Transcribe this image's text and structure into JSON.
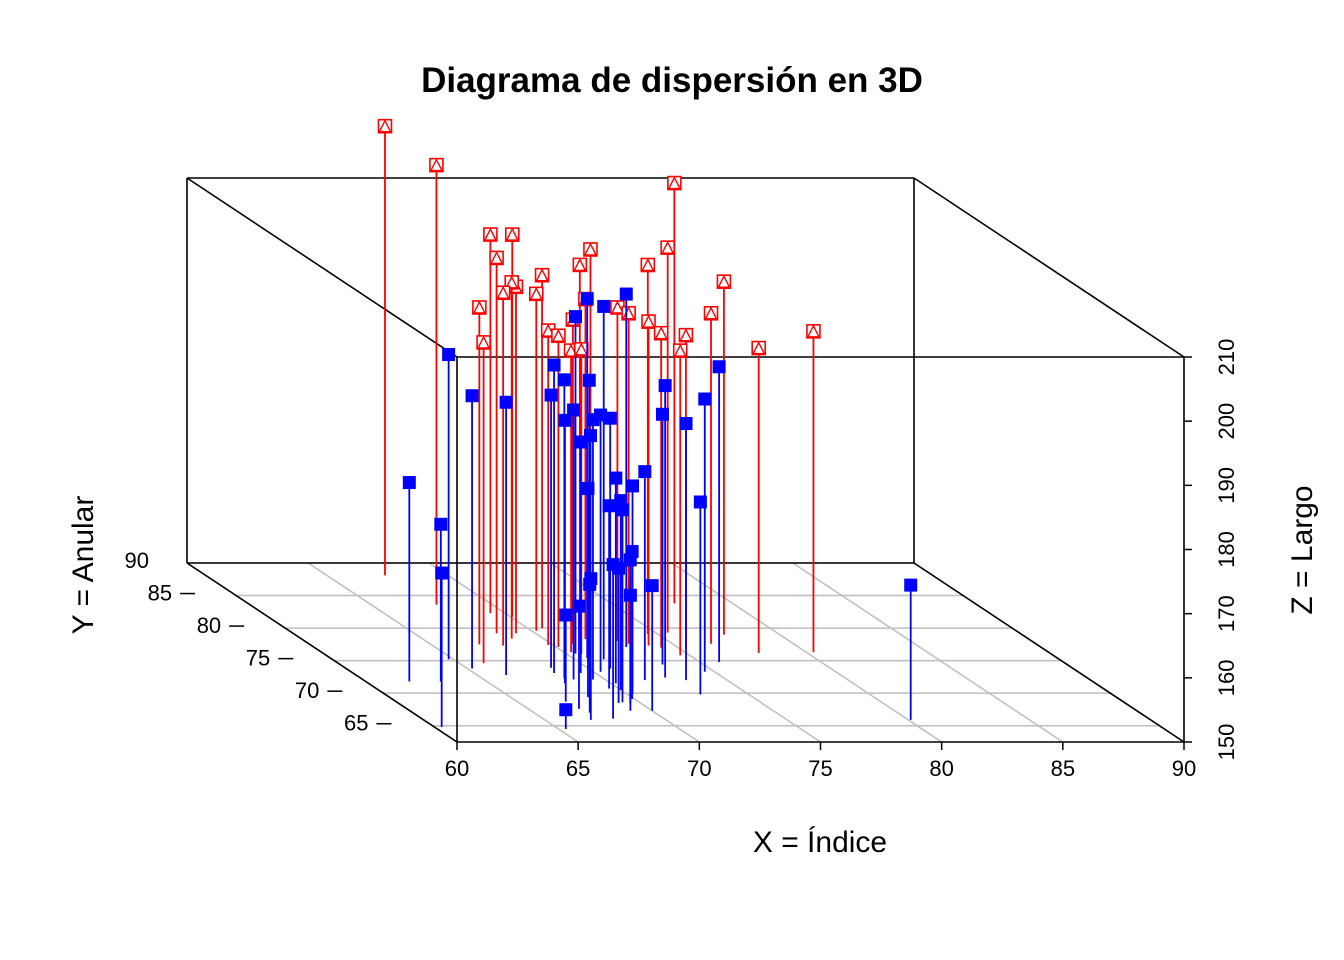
{
  "chart_data": {
    "type": "scatter",
    "title": "Diagrama de dispersión en 3D",
    "xlabel": "X = Índice",
    "ylabel": "Y = Anular",
    "zlabel": "Z = Largo",
    "xlim": [
      60,
      90
    ],
    "ylim": [
      62.5,
      90
    ],
    "zlim": [
      150,
      210
    ],
    "x_ticks": [
      "60",
      "65",
      "70",
      "75",
      "80",
      "85",
      "90"
    ],
    "y_ticks": [
      "65",
      "70",
      "75",
      "80",
      "85",
      "90"
    ],
    "z_ticks": [
      "150",
      "160",
      "170",
      "180",
      "190",
      "200",
      "210"
    ],
    "grid": true,
    "drop_lines": true,
    "colors": {
      "series_blue": "#0000ff",
      "series_red": "#ff0000",
      "grid": "#bebebe",
      "box": "#000000"
    },
    "series": [
      {
        "marker": "filled-square",
        "color": "#0000ff",
        "points": [
          [
            60.3,
            64.8,
            174.0
          ],
          [
            61.8,
            71.8,
            181.0
          ],
          [
            63.1,
            71.8,
            174.5
          ],
          [
            64.8,
            75.2,
            197.5
          ],
          [
            65.2,
            73.8,
            192.5
          ],
          [
            66.2,
            72.8,
            192.5
          ],
          [
            65.3,
            64.5,
            153.0
          ],
          [
            66.9,
            65.9,
            172.0
          ],
          [
            67.3,
            67.0,
            170.0
          ],
          [
            67.1,
            67.6,
            166.0
          ],
          [
            67.0,
            68.7,
            163.5
          ],
          [
            67.9,
            66.1,
            174.0
          ],
          [
            68.2,
            69.4,
            182.5
          ],
          [
            68.1,
            71.5,
            191.0
          ],
          [
            68.3,
            73.1,
            198.0
          ],
          [
            68.4,
            72.3,
            196.5
          ],
          [
            68.5,
            73.9,
            192.5
          ],
          [
            68.7,
            72.1,
            192.0
          ],
          [
            69.1,
            67.3,
            168.0
          ],
          [
            69.1,
            68.5,
            171.0
          ],
          [
            69.3,
            68.6,
            180.0
          ],
          [
            69.4,
            73.1,
            186.0
          ],
          [
            69.5,
            72.1,
            190.5
          ],
          [
            69.6,
            72.6,
            187.5
          ],
          [
            69.6,
            70.7,
            178.5
          ],
          [
            69.5,
            68.3,
            172.5
          ],
          [
            69.9,
            69.1,
            173.0
          ],
          [
            70.0,
            70.5,
            179.5
          ],
          [
            70.2,
            71.5,
            182.0
          ],
          [
            70.3,
            73.3,
            190.0
          ],
          [
            70.4,
            74.7,
            194.0
          ],
          [
            70.6,
            75.4,
            206.0
          ],
          [
            70.4,
            76.1,
            202.5
          ],
          [
            70.9,
            73.8,
            189.0
          ],
          [
            70.2,
            69.8,
            182.5
          ],
          [
            70.0,
            67.3,
            169.5
          ],
          [
            71.2,
            75.2,
            205.0
          ],
          [
            71.6,
            72.0,
            182.5
          ],
          [
            72.6,
            72.4,
            195.5
          ],
          [
            72.9,
            77.1,
            205.0
          ],
          [
            73.3,
            74.4,
            189.0
          ],
          [
            73.0,
            69.8,
            180.0
          ],
          [
            73.3,
            72.0,
            190.0
          ],
          [
            74.6,
            73.3,
            192.5
          ],
          [
            75.8,
            74.8,
            196.0
          ],
          [
            80.1,
            65.9,
            171.0
          ]
        ]
      },
      {
        "marker": "open-square-triangle",
        "color": "#ff0000",
        "points": [
          [
            66.0,
            74.6,
            200.0
          ],
          [
            67.0,
            77.5,
            202.5
          ],
          [
            67.4,
            88.1,
            220.0
          ],
          [
            67.7,
            83.6,
            218.5
          ],
          [
            67.9,
            77.3,
            205.0
          ],
          [
            68.4,
            79.2,
            208.5
          ],
          [
            68.7,
            78.4,
            205.5
          ],
          [
            69.4,
            82.3,
            209.0
          ],
          [
            69.2,
            79.2,
            204.0
          ],
          [
            69.8,
            77.4,
            199.0
          ],
          [
            70.1,
            81.8,
            209.5
          ],
          [
            70.2,
            79.6,
            202.5
          ],
          [
            70.1,
            77.1,
            198.5
          ],
          [
            70.6,
            80.0,
            205.0
          ],
          [
            70.3,
            76.3,
            197.0
          ],
          [
            70.6,
            76.0,
            197.5
          ],
          [
            70.9,
            77.6,
            200.5
          ],
          [
            71.7,
            78.3,
            203.0
          ],
          [
            72.2,
            80.1,
            206.5
          ],
          [
            72.8,
            80.5,
            208.5
          ],
          [
            72.9,
            78.0,
            202.0
          ],
          [
            73.2,
            77.6,
            201.5
          ],
          [
            73.9,
            77.3,
            200.5
          ],
          [
            74.3,
            77.0,
            199.0
          ],
          [
            74.6,
            79.1,
            207.5
          ],
          [
            75.2,
            76.7,
            199.0
          ],
          [
            74.6,
            75.8,
            197.5
          ],
          [
            75.5,
            79.3,
            210.0
          ],
          [
            76.6,
            77.6,
            201.5
          ],
          [
            77.6,
            83.8,
            215.5
          ],
          [
            77.7,
            79.0,
            205.0
          ],
          [
            78.0,
            76.2,
            197.5
          ],
          [
            80.3,
            76.3,
            200.0
          ]
        ]
      }
    ]
  }
}
